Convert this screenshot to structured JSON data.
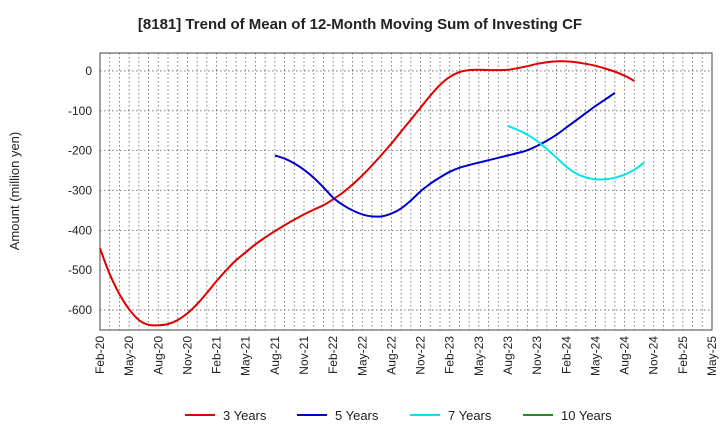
{
  "chart_data": {
    "type": "line",
    "title": "[8181]  Trend of Mean of 12-Month Moving Sum of Investing CF",
    "xlabel": "",
    "ylabel": "Amount (million yen)",
    "x_ticks": [
      "Feb-20",
      "May-20",
      "Aug-20",
      "Nov-20",
      "Feb-21",
      "May-21",
      "Aug-21",
      "Nov-21",
      "Feb-22",
      "May-22",
      "Aug-22",
      "Nov-22",
      "Feb-23",
      "May-23",
      "Aug-23",
      "Nov-23",
      "Feb-24",
      "May-24",
      "Aug-24",
      "Nov-24",
      "Feb-25",
      "May-25"
    ],
    "y_ticks": [
      0,
      -100,
      -200,
      -300,
      -400,
      -500,
      -600
    ],
    "ylim": [
      -650,
      45
    ],
    "grid": true,
    "legend_position": "bottom",
    "series": [
      {
        "name": "3 Years",
        "color": "#e00000",
        "points": [
          [
            "Feb-20",
            -445
          ],
          [
            "Mar-20",
            -510
          ],
          [
            "Apr-20",
            -560
          ],
          [
            "May-20",
            -598
          ],
          [
            "Jun-20",
            -625
          ],
          [
            "Jul-20",
            -637
          ],
          [
            "Aug-20",
            -638
          ],
          [
            "Sep-20",
            -635
          ],
          [
            "Oct-20",
            -625
          ],
          [
            "Nov-20",
            -608
          ],
          [
            "Dec-20",
            -585
          ],
          [
            "Jan-21",
            -557
          ],
          [
            "Feb-21",
            -527
          ],
          [
            "Mar-21",
            -500
          ],
          [
            "Apr-21",
            -475
          ],
          [
            "May-21",
            -455
          ],
          [
            "Jun-21",
            -435
          ],
          [
            "Jul-21",
            -418
          ],
          [
            "Aug-21",
            -402
          ],
          [
            "Sep-21",
            -387
          ],
          [
            "Oct-21",
            -373
          ],
          [
            "Nov-21",
            -360
          ],
          [
            "Dec-21",
            -348
          ],
          [
            "Jan-22",
            -337
          ],
          [
            "Feb-22",
            -322
          ],
          [
            "Mar-22",
            -305
          ],
          [
            "Apr-22",
            -285
          ],
          [
            "May-22",
            -262
          ],
          [
            "Jun-22",
            -237
          ],
          [
            "Jul-22",
            -210
          ],
          [
            "Aug-22",
            -182
          ],
          [
            "Sep-22",
            -152
          ],
          [
            "Oct-22",
            -122
          ],
          [
            "Nov-22",
            -92
          ],
          [
            "Dec-22",
            -62
          ],
          [
            "Jan-23",
            -35
          ],
          [
            "Feb-23",
            -15
          ],
          [
            "Mar-23",
            -3
          ],
          [
            "Apr-23",
            2
          ],
          [
            "May-23",
            3
          ],
          [
            "Jun-23",
            2
          ],
          [
            "Jul-23",
            2
          ],
          [
            "Aug-23",
            3
          ],
          [
            "Sep-23",
            7
          ],
          [
            "Oct-23",
            12
          ],
          [
            "Nov-23",
            18
          ],
          [
            "Dec-23",
            22
          ],
          [
            "Jan-24",
            24
          ],
          [
            "Feb-24",
            24
          ],
          [
            "Mar-24",
            22
          ],
          [
            "Apr-24",
            18
          ],
          [
            "May-24",
            13
          ],
          [
            "Jun-24",
            6
          ],
          [
            "Jul-24",
            -2
          ],
          [
            "Aug-24",
            -12
          ],
          [
            "Sep-24",
            -25
          ]
        ]
      },
      {
        "name": "5 Years",
        "color": "#0000cc",
        "points": [
          [
            "Aug-21",
            -212
          ],
          [
            "Sep-21",
            -220
          ],
          [
            "Oct-21",
            -232
          ],
          [
            "Nov-21",
            -248
          ],
          [
            "Dec-21",
            -268
          ],
          [
            "Jan-22",
            -292
          ],
          [
            "Feb-22",
            -318
          ],
          [
            "Mar-22",
            -336
          ],
          [
            "Apr-22",
            -350
          ],
          [
            "May-22",
            -360
          ],
          [
            "Jun-22",
            -365
          ],
          [
            "Jul-22",
            -365
          ],
          [
            "Aug-22",
            -358
          ],
          [
            "Sep-22",
            -345
          ],
          [
            "Oct-22",
            -325
          ],
          [
            "Nov-22",
            -302
          ],
          [
            "Dec-22",
            -283
          ],
          [
            "Jan-23",
            -267
          ],
          [
            "Feb-23",
            -253
          ],
          [
            "Mar-23",
            -243
          ],
          [
            "Apr-23",
            -236
          ],
          [
            "May-23",
            -230
          ],
          [
            "Jun-23",
            -224
          ],
          [
            "Jul-23",
            -218
          ],
          [
            "Aug-23",
            -212
          ],
          [
            "Sep-23",
            -206
          ],
          [
            "Oct-23",
            -199
          ],
          [
            "Nov-23",
            -188
          ],
          [
            "Dec-23",
            -175
          ],
          [
            "Jan-24",
            -160
          ],
          [
            "Feb-24",
            -142
          ],
          [
            "Mar-24",
            -124
          ],
          [
            "Apr-24",
            -106
          ],
          [
            "May-24",
            -88
          ],
          [
            "Jun-24",
            -72
          ],
          [
            "Jul-24",
            -55
          ]
        ]
      },
      {
        "name": "7 Years",
        "color": "#00e5ee",
        "points": [
          [
            "Aug-23",
            -138
          ],
          [
            "Sep-23",
            -148
          ],
          [
            "Oct-23",
            -160
          ],
          [
            "Nov-23",
            -176
          ],
          [
            "Dec-23",
            -196
          ],
          [
            "Jan-24",
            -218
          ],
          [
            "Feb-24",
            -240
          ],
          [
            "Mar-24",
            -257
          ],
          [
            "Apr-24",
            -267
          ],
          [
            "May-24",
            -272
          ],
          [
            "Jun-24",
            -272
          ],
          [
            "Jul-24",
            -268
          ],
          [
            "Aug-24",
            -260
          ],
          [
            "Sep-24",
            -248
          ],
          [
            "Oct-24",
            -230
          ]
        ]
      },
      {
        "name": "10 Years",
        "color": "#228b22",
        "points": []
      }
    ]
  }
}
